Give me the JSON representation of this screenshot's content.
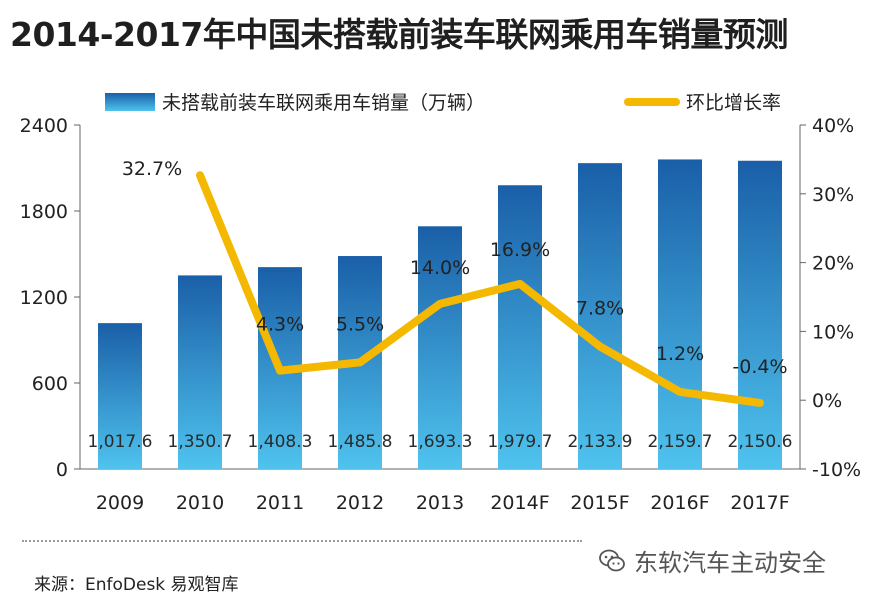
{
  "title": "2014-2017年中国未搭载前装车联网乘用车销量预测",
  "chart_data": {
    "type": "bar+line",
    "title": "2014-2017年中国未搭载前装车联网乘用车销量预测",
    "categories": [
      "2009",
      "2010",
      "2011",
      "2012",
      "2013",
      "2014F",
      "2015F",
      "2016F",
      "2017F"
    ],
    "series": [
      {
        "name": "未搭载前装车联网乘用车销量（万辆）",
        "kind": "bar",
        "axis": "left",
        "values": [
          1017.6,
          1350.7,
          1408.3,
          1485.8,
          1693.3,
          1979.7,
          2133.9,
          2159.7,
          2150.6
        ],
        "labels": [
          "1,017.6",
          "1,350.7",
          "1,408.3",
          "1,485.8",
          "1,693.3",
          "1,979.7",
          "2,133.9",
          "2,159.7",
          "2,150.6"
        ]
      },
      {
        "name": "环比增长率",
        "kind": "line",
        "axis": "right",
        "values": [
          null,
          32.7,
          4.3,
          5.5,
          14.0,
          16.9,
          7.8,
          1.2,
          -0.4
        ],
        "labels": [
          "",
          "32.7%",
          "4.3%",
          "5.5%",
          "14.0%",
          "16.9%",
          "7.8%",
          "1.2%",
          "-0.4%"
        ]
      }
    ],
    "left_axis": {
      "min": 0,
      "max": 2400,
      "ticks": [
        0,
        600,
        1200,
        1800,
        2400
      ],
      "tick_labels": [
        "0",
        "600",
        "1200",
        "1800",
        "2400"
      ]
    },
    "right_axis": {
      "min": -10,
      "max": 40,
      "ticks": [
        -10,
        0,
        10,
        20,
        30,
        40
      ],
      "tick_labels": [
        "-10%",
        "0%",
        "10%",
        "20%",
        "30%",
        "40%"
      ]
    },
    "legend_position": "top",
    "colors": {
      "bar_top": "#1a5fa8",
      "bar_bottom": "#4fc3ee",
      "line": "#f5b800"
    }
  },
  "source": "来源：EnfoDesk 易观智库",
  "brand": "东软汽车主动安全",
  "brand_icon": "wechat-icon"
}
